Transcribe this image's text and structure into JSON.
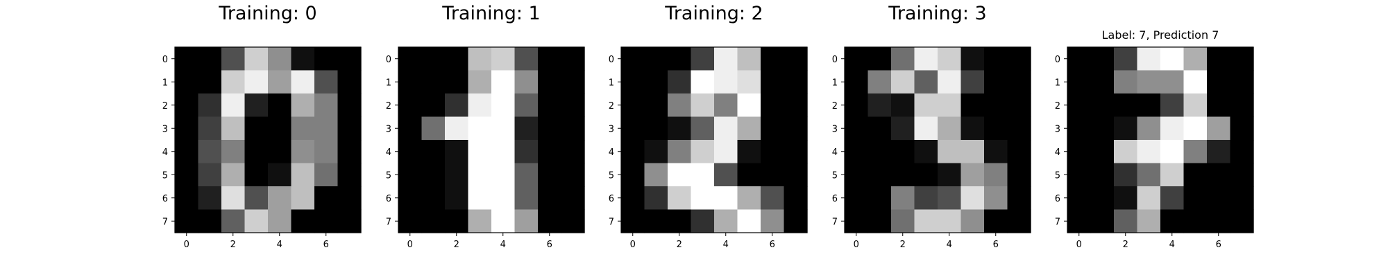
{
  "chart_data": [
    {
      "type": "heatmap",
      "title": "Training: 0",
      "colormap": "gray_r",
      "vmax": 16,
      "x_ticks": [
        0,
        2,
        4,
        6
      ],
      "y_ticks": [
        0,
        1,
        2,
        3,
        4,
        5,
        6,
        7
      ],
      "values": [
        [
          0,
          0,
          5,
          13,
          9,
          1,
          0,
          0
        ],
        [
          0,
          0,
          13,
          15,
          10,
          15,
          5,
          0
        ],
        [
          0,
          3,
          15,
          2,
          0,
          11,
          8,
          0
        ],
        [
          0,
          4,
          12,
          0,
          0,
          8,
          8,
          0
        ],
        [
          0,
          5,
          8,
          0,
          0,
          9,
          8,
          0
        ],
        [
          0,
          4,
          11,
          0,
          1,
          12,
          7,
          0
        ],
        [
          0,
          2,
          14,
          5,
          10,
          12,
          0,
          0
        ],
        [
          0,
          0,
          6,
          13,
          10,
          0,
          0,
          0
        ]
      ]
    },
    {
      "type": "heatmap",
      "title": "Training: 1",
      "colormap": "gray_r",
      "vmax": 16,
      "x_ticks": [
        0,
        2,
        4,
        6
      ],
      "y_ticks": [
        0,
        1,
        2,
        3,
        4,
        5,
        6,
        7
      ],
      "values": [
        [
          0,
          0,
          0,
          12,
          13,
          5,
          0,
          0
        ],
        [
          0,
          0,
          0,
          11,
          16,
          9,
          0,
          0
        ],
        [
          0,
          0,
          3,
          15,
          16,
          6,
          0,
          0
        ],
        [
          0,
          7,
          15,
          16,
          16,
          2,
          0,
          0
        ],
        [
          0,
          0,
          1,
          16,
          16,
          3,
          0,
          0
        ],
        [
          0,
          0,
          1,
          16,
          16,
          6,
          0,
          0
        ],
        [
          0,
          0,
          1,
          16,
          16,
          6,
          0,
          0
        ],
        [
          0,
          0,
          0,
          11,
          16,
          10,
          0,
          0
        ]
      ]
    },
    {
      "type": "heatmap",
      "title": "Training: 2",
      "colormap": "gray_r",
      "vmax": 16,
      "x_ticks": [
        0,
        2,
        4,
        6
      ],
      "y_ticks": [
        0,
        1,
        2,
        3,
        4,
        5,
        6,
        7
      ],
      "values": [
        [
          0,
          0,
          0,
          4,
          15,
          12,
          0,
          0
        ],
        [
          0,
          0,
          3,
          16,
          15,
          14,
          0,
          0
        ],
        [
          0,
          0,
          8,
          13,
          8,
          16,
          0,
          0
        ],
        [
          0,
          0,
          1,
          6,
          15,
          11,
          0,
          0
        ],
        [
          0,
          1,
          8,
          13,
          15,
          1,
          0,
          0
        ],
        [
          0,
          9,
          16,
          16,
          5,
          0,
          0,
          0
        ],
        [
          0,
          3,
          13,
          16,
          16,
          11,
          5,
          0
        ],
        [
          0,
          0,
          0,
          3,
          11,
          16,
          9,
          0
        ]
      ]
    },
    {
      "type": "heatmap",
      "title": "Training: 3",
      "colormap": "gray_r",
      "vmax": 16,
      "x_ticks": [
        0,
        2,
        4,
        6
      ],
      "y_ticks": [
        0,
        1,
        2,
        3,
        4,
        5,
        6,
        7
      ],
      "values": [
        [
          0,
          0,
          7,
          15,
          13,
          1,
          0,
          0
        ],
        [
          0,
          8,
          13,
          6,
          15,
          4,
          0,
          0
        ],
        [
          0,
          2,
          1,
          13,
          13,
          0,
          0,
          0
        ],
        [
          0,
          0,
          2,
          15,
          11,
          1,
          0,
          0
        ],
        [
          0,
          0,
          0,
          1,
          12,
          12,
          1,
          0
        ],
        [
          0,
          0,
          0,
          0,
          1,
          10,
          8,
          0
        ],
        [
          0,
          0,
          8,
          4,
          5,
          14,
          9,
          0
        ],
        [
          0,
          0,
          7,
          13,
          13,
          9,
          0,
          0
        ]
      ]
    },
    {
      "type": "heatmap",
      "title": "Label: 7, Prediction 7",
      "colormap": "gray_r",
      "vmax": 16,
      "x_ticks": [
        0,
        2,
        4,
        6
      ],
      "y_ticks": [
        0,
        1,
        2,
        3,
        4,
        5,
        6,
        7
      ],
      "values": [
        [
          0,
          0,
          4,
          15,
          16,
          11,
          0,
          0
        ],
        [
          0,
          0,
          8,
          9,
          9,
          16,
          0,
          0
        ],
        [
          0,
          0,
          0,
          0,
          4,
          13,
          0,
          0
        ],
        [
          0,
          0,
          1,
          9,
          15,
          16,
          10,
          0
        ],
        [
          0,
          0,
          13,
          15,
          16,
          8,
          2,
          0
        ],
        [
          0,
          0,
          3,
          7,
          13,
          0,
          0,
          0
        ],
        [
          0,
          0,
          1,
          13,
          4,
          0,
          0,
          0
        ],
        [
          0,
          0,
          6,
          11,
          0,
          0,
          0,
          0
        ]
      ]
    }
  ]
}
